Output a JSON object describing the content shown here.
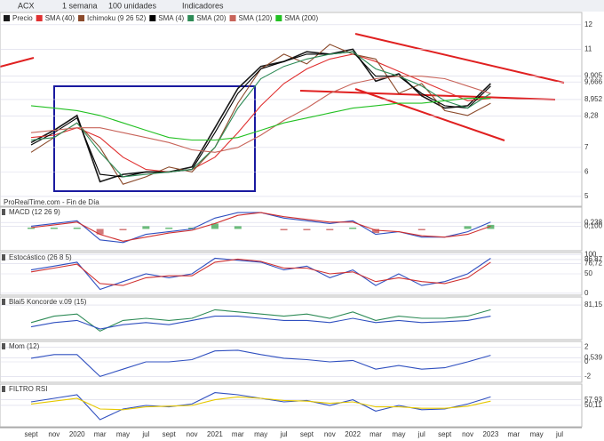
{
  "toolbar": {
    "symbol": "ACX",
    "period": "1 semana",
    "units": "100 unidades",
    "indicators": "Indicadores"
  },
  "chart_data": [
    {
      "type": "line",
      "title": "Precio",
      "categories": [
        "sept",
        "nov",
        "2020",
        "mar",
        "may",
        "jul",
        "sept",
        "nov",
        "2021",
        "mar",
        "may",
        "jul",
        "sept",
        "nov",
        "2022",
        "mar",
        "may",
        "jul",
        "sept",
        "nov",
        "2023",
        "mar",
        "may",
        "jul"
      ],
      "annotations": [
        "ProRealTime.com - Fin de Día"
      ],
      "ylim": [
        4.6,
        12.5
      ],
      "yticks": [
        5,
        6,
        7,
        {
          "value": 8.28,
          "label": "8,28"
        },
        {
          "value": 8.952,
          "label": "8,952"
        },
        {
          "value": 9.666,
          "label": "9,666"
        },
        {
          "value": 9.905,
          "label": "9,905"
        },
        11,
        12
      ],
      "series": [
        {
          "name": "Precio",
          "color": "#1a1a1a",
          "values": [
            7.2,
            7.7,
            8.3,
            5.6,
            5.9,
            6.0,
            6.0,
            6.2,
            7.8,
            9.4,
            10.3,
            10.5,
            10.9,
            10.8,
            11.0,
            9.7,
            10.0,
            9.1,
            8.6,
            8.7,
            9.6,
            null,
            null,
            null
          ]
        },
        {
          "name": "SMA (40)",
          "color": "#e03030",
          "values": [
            7.4,
            7.5,
            7.8,
            7.4,
            6.6,
            6.1,
            6.0,
            6.1,
            6.6,
            7.6,
            8.7,
            9.6,
            10.2,
            10.6,
            10.8,
            10.5,
            10.1,
            9.7,
            9.3,
            8.9,
            9.0,
            null,
            null,
            null
          ]
        },
        {
          "name": "Ichimoku (9 26 52)",
          "color": "#8b4a2b",
          "values": [
            6.8,
            7.4,
            8.0,
            7.0,
            5.5,
            5.8,
            6.2,
            6.0,
            7.0,
            8.8,
            10.2,
            10.8,
            10.4,
            11.2,
            10.8,
            10.6,
            9.2,
            9.6,
            8.5,
            8.3,
            8.8,
            null,
            null,
            null
          ]
        },
        {
          "name": "SMA (4)",
          "color": "#000000",
          "values": [
            7.1,
            7.6,
            8.2,
            5.9,
            5.8,
            6.0,
            6.0,
            6.1,
            7.6,
            9.2,
            10.2,
            10.5,
            10.8,
            10.8,
            10.9,
            9.9,
            9.9,
            9.2,
            8.7,
            8.6,
            9.5,
            null,
            null,
            null
          ]
        },
        {
          "name": "SMA (20)",
          "color": "#2e8b57",
          "values": [
            7.3,
            7.4,
            8.0,
            6.8,
            5.8,
            5.9,
            6.0,
            6.1,
            7.0,
            8.6,
            9.8,
            10.3,
            10.6,
            10.8,
            10.9,
            10.2,
            9.9,
            9.5,
            8.9,
            8.6,
            9.2,
            null,
            null,
            null
          ]
        },
        {
          "name": "SMA (120)",
          "color": "#c8645a",
          "values": [
            7.6,
            7.7,
            7.8,
            7.8,
            7.6,
            7.4,
            7.2,
            6.9,
            6.8,
            7.0,
            7.5,
            8.1,
            8.6,
            9.2,
            9.6,
            9.8,
            9.9,
            9.9,
            9.8,
            9.5,
            9.2,
            null,
            null,
            null
          ]
        },
        {
          "name": "SMA (200)",
          "color": "#22c022",
          "values": [
            8.7,
            8.6,
            8.5,
            8.3,
            8.0,
            7.7,
            7.4,
            7.3,
            7.3,
            7.4,
            7.7,
            8.0,
            8.2,
            8.4,
            8.6,
            8.7,
            8.8,
            8.8,
            8.9,
            9.0,
            9.0,
            null,
            null,
            null
          ]
        }
      ]
    },
    {
      "type": "line",
      "title": "MACD (12 26 9)",
      "ylim": [
        -0.8,
        0.8
      ],
      "yticks": [
        {
          "value": 0.238,
          "label": "0,238"
        },
        {
          "value": 0.1,
          "label": "0,100"
        }
      ],
      "series": [
        {
          "type": "bar",
          "color": "#2ea043",
          "values": [
            0.05,
            0.05,
            0.05,
            -0.2,
            -0.05,
            0.1,
            0.05,
            0.05,
            0.2,
            0.1,
            0,
            -0.05,
            -0.05,
            -0.05,
            0.05,
            -0.15,
            0,
            -0.05,
            0,
            0.1,
            0.15,
            null,
            null,
            null
          ]
        },
        {
          "color": "#3050c0",
          "values": [
            0.1,
            0.2,
            0.3,
            -0.4,
            -0.5,
            -0.2,
            -0.1,
            0.0,
            0.4,
            0.6,
            0.6,
            0.4,
            0.3,
            0.2,
            0.3,
            -0.2,
            -0.1,
            -0.3,
            -0.3,
            -0.1,
            0.25,
            null,
            null,
            null
          ]
        },
        {
          "color": "#d03030",
          "values": [
            0.05,
            0.15,
            0.25,
            -0.2,
            -0.45,
            -0.3,
            -0.15,
            -0.05,
            0.2,
            0.5,
            0.6,
            0.45,
            0.35,
            0.25,
            0.25,
            -0.05,
            -0.1,
            -0.25,
            -0.3,
            -0.2,
            0.1,
            null,
            null,
            null
          ]
        }
      ]
    },
    {
      "type": "line",
      "title": "Estocástico (26 8 5)",
      "ylim": [
        -5,
        105
      ],
      "yticks": [
        0,
        50,
        {
          "value": 76.72,
          "label": "76,72"
        },
        {
          "value": 86.87,
          "label": "86,87"
        },
        100
      ],
      "series": [
        {
          "color": "#3050c0",
          "values": [
            60,
            70,
            80,
            10,
            30,
            50,
            40,
            50,
            90,
            85,
            80,
            60,
            70,
            40,
            60,
            20,
            50,
            20,
            30,
            50,
            90,
            null,
            null,
            null
          ]
        },
        {
          "color": "#d03030",
          "values": [
            55,
            65,
            75,
            25,
            20,
            40,
            45,
            45,
            80,
            88,
            82,
            65,
            65,
            50,
            55,
            30,
            40,
            30,
            25,
            40,
            80,
            null,
            null,
            null
          ]
        }
      ]
    },
    {
      "type": "line",
      "title": "Blai5 Koncorde v.09 (15)",
      "ylim": [
        0,
        100
      ],
      "yticks": [
        {
          "value": 81.15,
          "label": "81,15"
        }
      ],
      "series": [
        {
          "color": "#2e8b57",
          "values": [
            40,
            55,
            60,
            20,
            45,
            50,
            45,
            50,
            70,
            65,
            60,
            55,
            60,
            50,
            65,
            45,
            55,
            50,
            50,
            55,
            70,
            null,
            null,
            null
          ]
        },
        {
          "color": "#3050c0",
          "values": [
            30,
            40,
            45,
            25,
            35,
            40,
            35,
            45,
            55,
            55,
            50,
            45,
            45,
            40,
            50,
            40,
            45,
            40,
            42,
            45,
            55,
            null,
            null,
            null
          ]
        }
      ]
    },
    {
      "type": "line",
      "title": "Mom (12)",
      "ylim": [
        -2.8,
        2.8
      ],
      "yticks": [
        -2,
        0,
        {
          "value": 0.539,
          "label": "0,539"
        },
        2
      ],
      "series": [
        {
          "color": "#3050c0",
          "values": [
            0.5,
            1,
            1,
            -2,
            -1,
            0,
            0,
            0.3,
            1.5,
            1.6,
            1,
            0.5,
            0.3,
            0,
            0.2,
            -1,
            -0.5,
            -1,
            -0.8,
            0,
            0.9,
            null,
            null,
            null
          ]
        }
      ]
    },
    {
      "type": "line",
      "title": "FILTRO RSI",
      "ylim": [
        20,
        80
      ],
      "yticks": [
        {
          "value": 50.11,
          "label": "50,11"
        },
        {
          "value": 57.93,
          "label": "57,93"
        }
      ],
      "series": [
        {
          "color": "#3050c0",
          "values": [
            55,
            60,
            65,
            30,
            45,
            50,
            48,
            52,
            68,
            65,
            60,
            55,
            57,
            50,
            58,
            42,
            50,
            44,
            45,
            52,
            62,
            null,
            null,
            null
          ]
        },
        {
          "color": "#e6c800",
          "values": [
            52,
            56,
            60,
            45,
            44,
            48,
            49,
            50,
            58,
            62,
            60,
            57,
            56,
            53,
            55,
            48,
            48,
            46,
            46,
            49,
            56,
            null,
            null,
            null
          ]
        }
      ]
    }
  ]
}
